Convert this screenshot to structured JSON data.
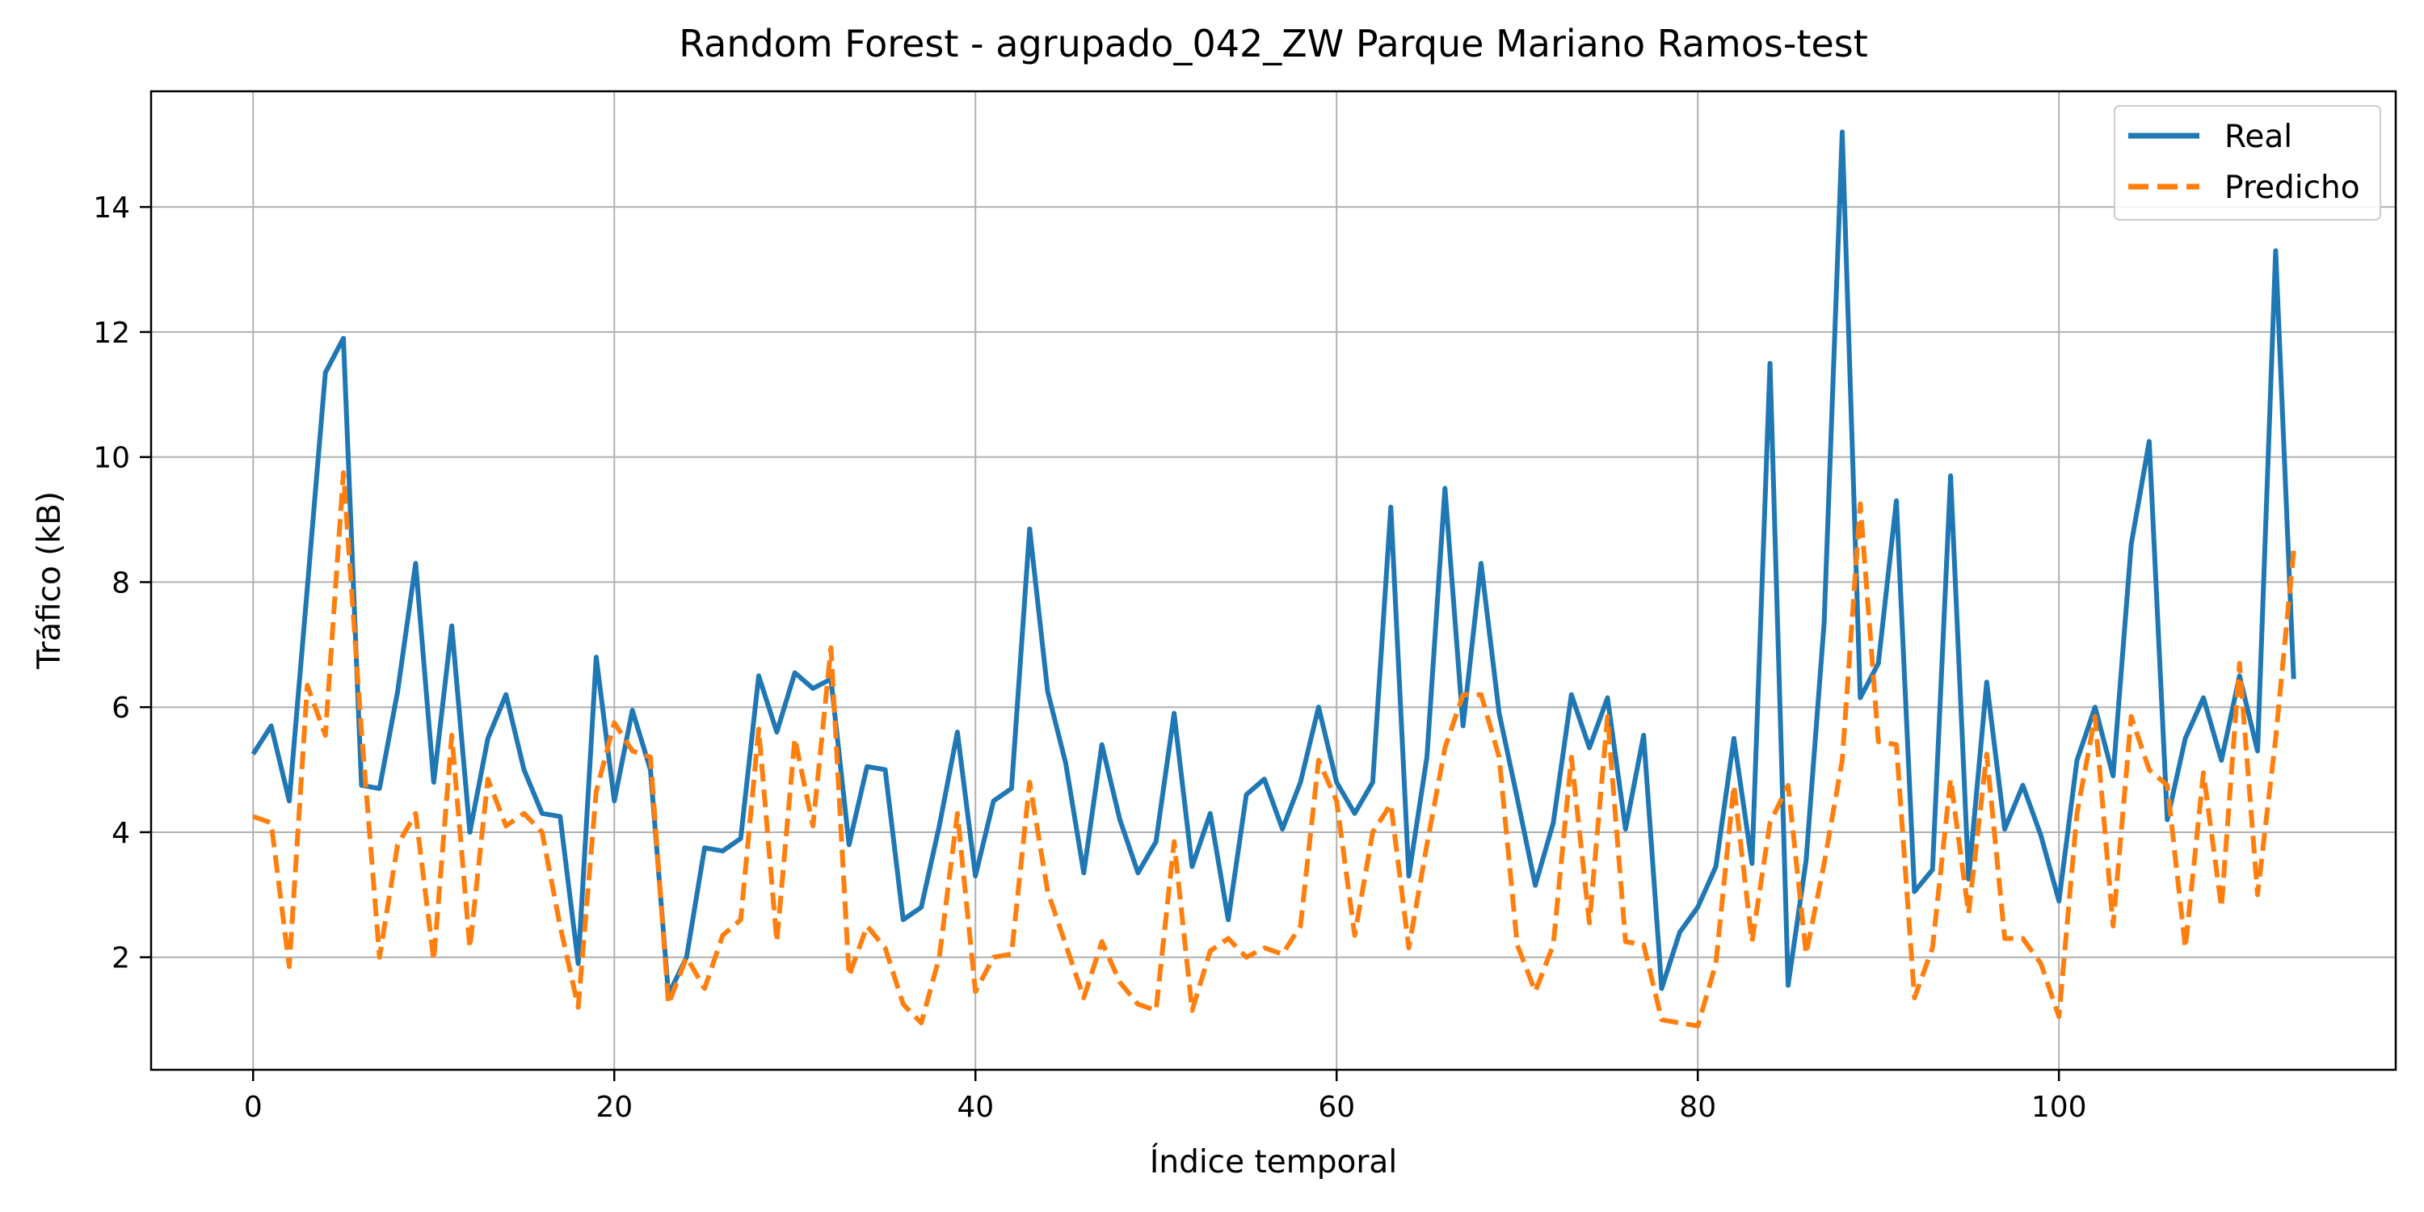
{
  "chart_data": {
    "type": "line",
    "title": "Random Forest - agrupado_042_ZW Parque Mariano Ramos-test",
    "xlabel": "Índice temporal",
    "ylabel": "Tráfico (kB)",
    "xlim": [
      -5.65,
      118.65
    ],
    "ylim": [
      0.2,
      15.85
    ],
    "x_ticks": [
      0,
      20,
      40,
      60,
      80,
      100
    ],
    "y_ticks": [
      2,
      4,
      6,
      8,
      10,
      12,
      14
    ],
    "grid": true,
    "legend_position": "top-right",
    "series": [
      {
        "name": "Real",
        "color": "#1f77b4",
        "style": "solid",
        "values": [
          5.25,
          5.7,
          4.5,
          7.9,
          11.35,
          11.9,
          4.75,
          4.7,
          6.25,
          8.3,
          4.8,
          7.3,
          4.0,
          5.5,
          6.2,
          5.0,
          4.3,
          4.25,
          1.9,
          6.8,
          4.5,
          5.95,
          5.0,
          1.4,
          2.0,
          3.75,
          3.7,
          3.9,
          6.5,
          5.6,
          6.55,
          6.3,
          6.45,
          3.8,
          5.05,
          5.0,
          2.6,
          2.8,
          4.1,
          5.6,
          3.3,
          4.5,
          4.7,
          8.85,
          6.25,
          5.1,
          3.35,
          5.4,
          4.2,
          3.35,
          3.85,
          5.9,
          3.45,
          4.3,
          2.6,
          4.6,
          4.85,
          4.05,
          4.8,
          6.0,
          4.8,
          4.3,
          4.8,
          9.2,
          3.3,
          5.2,
          9.5,
          5.7,
          8.3,
          5.9,
          4.55,
          3.15,
          4.15,
          6.2,
          5.35,
          6.15,
          4.05,
          5.55,
          1.5,
          2.4,
          2.8,
          3.45,
          5.5,
          3.5,
          11.5,
          1.55,
          3.55,
          7.35,
          15.2,
          6.15,
          6.7,
          9.3,
          3.05,
          3.4,
          9.7,
          3.25,
          6.4,
          4.05,
          4.75,
          3.95,
          2.9,
          5.15,
          6.0,
          4.9,
          8.6,
          10.25,
          4.2,
          5.5,
          6.15,
          5.15,
          6.5,
          5.3,
          13.3,
          6.45
        ]
      },
      {
        "name": "Predicho",
        "color": "#ff7f0e",
        "style": "dashed",
        "values": [
          4.25,
          4.15,
          1.85,
          6.35,
          5.55,
          9.75,
          5.6,
          2.0,
          3.8,
          4.3,
          1.95,
          5.55,
          2.15,
          4.85,
          4.1,
          4.3,
          4.0,
          2.5,
          1.2,
          4.65,
          5.75,
          5.3,
          5.2,
          1.25,
          2.0,
          1.5,
          2.35,
          2.6,
          5.65,
          2.25,
          5.5,
          4.1,
          6.95,
          1.7,
          2.5,
          2.15,
          1.25,
          0.95,
          2.0,
          4.3,
          1.45,
          2.0,
          2.05,
          4.8,
          3.05,
          2.2,
          1.35,
          2.25,
          1.6,
          1.25,
          1.15,
          3.85,
          1.15,
          2.1,
          2.3,
          2.0,
          2.15,
          2.05,
          2.5,
          5.15,
          4.5,
          2.35,
          4.0,
          4.45,
          2.15,
          3.8,
          5.35,
          6.2,
          6.2,
          5.2,
          2.2,
          1.45,
          2.2,
          5.2,
          2.55,
          5.85,
          2.25,
          2.2,
          1.0,
          0.95,
          0.9,
          1.9,
          4.75,
          2.25,
          4.15,
          4.75,
          2.05,
          3.5,
          5.15,
          9.25,
          5.45,
          5.4,
          1.35,
          2.15,
          4.85,
          2.7,
          5.25,
          2.3,
          2.3,
          1.9,
          1.05,
          4.3,
          5.85,
          2.5,
          5.85,
          5.0,
          4.75,
          2.15,
          4.95,
          2.8,
          6.7,
          3.0,
          5.5,
          8.5
        ]
      }
    ]
  }
}
